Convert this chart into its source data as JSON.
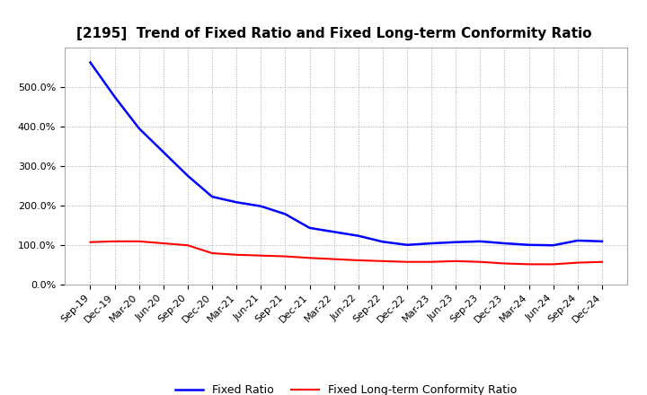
{
  "title": "[2195]  Trend of Fixed Ratio and Fixed Long-term Conformity Ratio",
  "x_labels": [
    "Sep-19",
    "Dec-19",
    "Mar-20",
    "Jun-20",
    "Sep-20",
    "Dec-20",
    "Mar-21",
    "Jun-21",
    "Sep-21",
    "Dec-21",
    "Mar-22",
    "Jun-22",
    "Sep-22",
    "Dec-22",
    "Mar-23",
    "Jun-23",
    "Sep-23",
    "Dec-23",
    "Mar-24",
    "Jun-24",
    "Sep-24",
    "Dec-24"
  ],
  "fixed_ratio": [
    5.62,
    4.75,
    3.95,
    3.35,
    2.75,
    2.22,
    2.08,
    1.98,
    1.78,
    1.43,
    1.33,
    1.23,
    1.08,
    1.0,
    1.04,
    1.07,
    1.09,
    1.04,
    1.0,
    0.99,
    1.11,
    1.09
  ],
  "fixed_lt_conformity": [
    1.07,
    1.09,
    1.09,
    1.04,
    0.99,
    0.79,
    0.75,
    0.73,
    0.71,
    0.67,
    0.64,
    0.61,
    0.59,
    0.57,
    0.57,
    0.59,
    0.57,
    0.53,
    0.51,
    0.51,
    0.55,
    0.57
  ],
  "blue_color": "#0000FF",
  "red_color": "#FF0000",
  "background_color": "#FFFFFF",
  "grid_color": "#AAAAAA",
  "ylim": [
    0.0,
    6.0
  ],
  "yticks": [
    0.0,
    1.0,
    2.0,
    3.0,
    4.0,
    5.0
  ],
  "ytick_labels": [
    "0.0%",
    "100.0%",
    "200.0%",
    "300.0%",
    "400.0%",
    "500.0%"
  ],
  "legend_fixed_ratio": "Fixed Ratio",
  "legend_fixed_lt": "Fixed Long-term Conformity Ratio",
  "title_fontsize": 11,
  "tick_fontsize": 8,
  "legend_fontsize": 9
}
